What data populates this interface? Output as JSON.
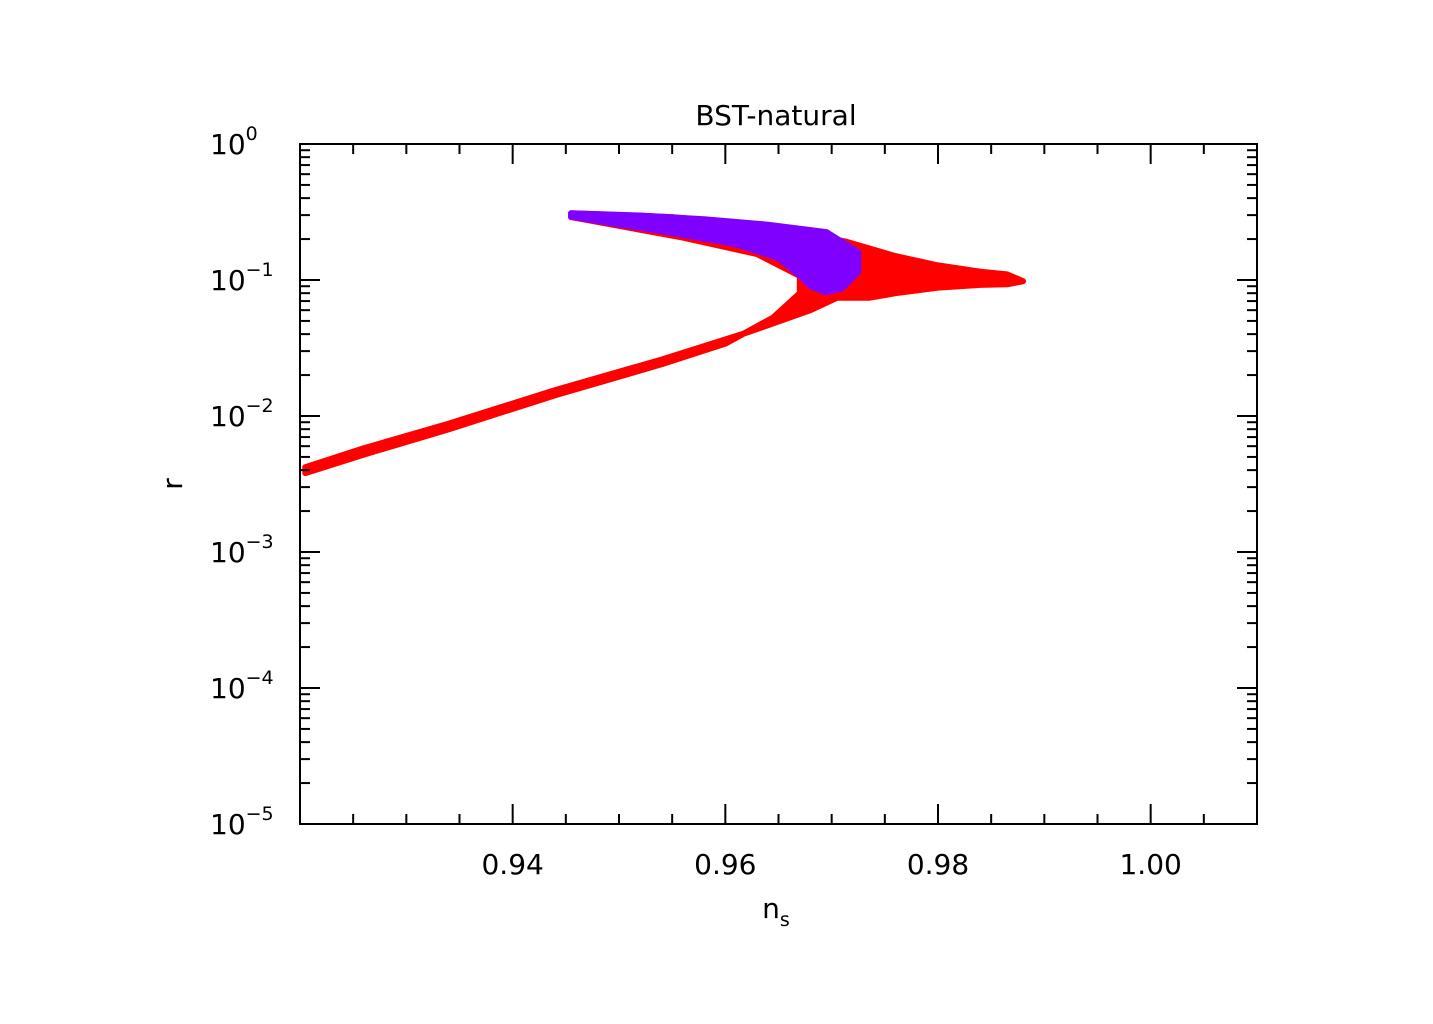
{
  "chart_data": {
    "type": "area",
    "title": "BST-natural",
    "xlabel": {
      "main": "n",
      "subscript": "s"
    },
    "ylabel": "r",
    "xlim": [
      0.92,
      1.01
    ],
    "ylim": [
      1e-05,
      1
    ],
    "yscale": "log",
    "grid": false,
    "x_ticks": [
      {
        "value": 0.94,
        "label": "0.94"
      },
      {
        "value": 0.96,
        "label": "0.96"
      },
      {
        "value": 0.98,
        "label": "0.98"
      },
      {
        "value": 1.0,
        "label": "1.00"
      }
    ],
    "y_ticks": [
      {
        "value": 1,
        "base": "10",
        "exp": "0"
      },
      {
        "value": 0.1,
        "base": "10",
        "exp": "−1"
      },
      {
        "value": 0.01,
        "base": "10",
        "exp": "−2"
      },
      {
        "value": 0.001,
        "base": "10",
        "exp": "−3"
      },
      {
        "value": 0.0001,
        "base": "10",
        "exp": "−4"
      },
      {
        "value": 1e-05,
        "base": "10",
        "exp": "−5"
      }
    ],
    "series": [
      {
        "color": "#ff0000",
        "points": [
          [
            0.9455,
            0.31
          ],
          [
            0.955,
            0.29
          ],
          [
            0.962,
            0.255
          ],
          [
            0.967,
            0.225
          ],
          [
            0.9715,
            0.19
          ],
          [
            0.976,
            0.15
          ],
          [
            0.98,
            0.128
          ],
          [
            0.984,
            0.115
          ],
          [
            0.9865,
            0.11
          ],
          [
            0.988,
            0.098
          ],
          [
            0.9865,
            0.093
          ],
          [
            0.984,
            0.092
          ],
          [
            0.98,
            0.088
          ],
          [
            0.976,
            0.08
          ],
          [
            0.9735,
            0.074
          ],
          [
            0.9705,
            0.074
          ],
          [
            0.968,
            0.06
          ],
          [
            0.962,
            0.041
          ],
          [
            0.954,
            0.026
          ],
          [
            0.944,
            0.0155
          ],
          [
            0.934,
            0.0088
          ],
          [
            0.926,
            0.0058
          ],
          [
            0.9205,
            0.0042
          ],
          [
            0.9205,
            0.0038
          ],
          [
            0.926,
            0.0052
          ],
          [
            0.934,
            0.008
          ],
          [
            0.944,
            0.0142
          ],
          [
            0.954,
            0.024
          ],
          [
            0.96,
            0.034
          ],
          [
            0.9645,
            0.053
          ],
          [
            0.967,
            0.08
          ],
          [
            0.967,
            0.107
          ],
          [
            0.963,
            0.155
          ],
          [
            0.956,
            0.205
          ],
          [
            0.9455,
            0.29
          ]
        ]
      },
      {
        "color": "#8000ff",
        "points": [
          [
            0.9455,
            0.31
          ],
          [
            0.952,
            0.298
          ],
          [
            0.958,
            0.28
          ],
          [
            0.964,
            0.255
          ],
          [
            0.9695,
            0.225
          ],
          [
            0.9725,
            0.16
          ],
          [
            0.9725,
            0.115
          ],
          [
            0.971,
            0.087
          ],
          [
            0.9695,
            0.081
          ],
          [
            0.968,
            0.09
          ],
          [
            0.967,
            0.108
          ],
          [
            0.965,
            0.145
          ],
          [
            0.961,
            0.183
          ],
          [
            0.955,
            0.222
          ],
          [
            0.9495,
            0.26
          ],
          [
            0.9455,
            0.292
          ]
        ]
      }
    ]
  }
}
